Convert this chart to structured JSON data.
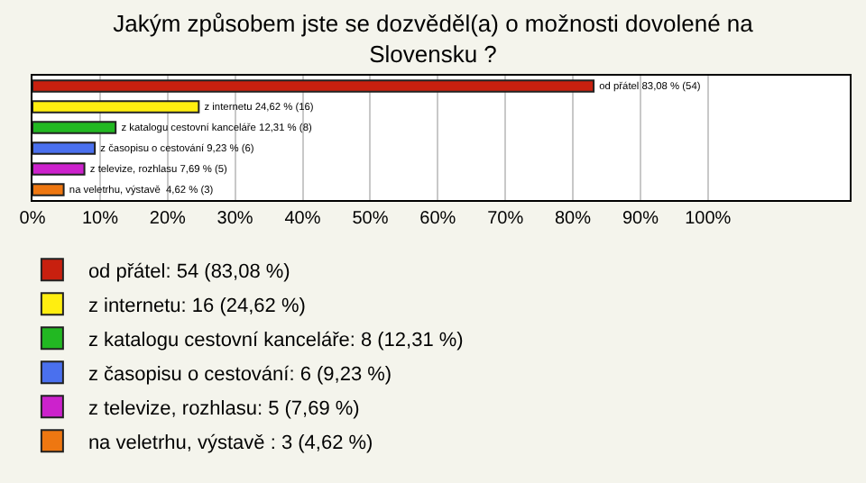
{
  "chart_data": {
    "type": "bar",
    "orientation": "horizontal",
    "title": "Jakým způsobem jste se dozvěděl(a) o možnosti dovolené na Slovensku ?",
    "categories": [
      null,
      null,
      null,
      null,
      null,
      null
    ],
    "series": [
      {
        "name": "od přátel: 54 (83,08 %)",
        "color": "#c8200f",
        "values": [
          83.08,
          null,
          null,
          null,
          null,
          null
        ],
        "value_labels": [
          "od přátel 83,08 % (54)",
          null,
          null,
          null,
          null,
          null
        ]
      },
      {
        "name": "z internetu: 16 (24,62 %)",
        "color": "#ffee10",
        "values": [
          null,
          24.62,
          null,
          null,
          null,
          null
        ],
        "value_labels": [
          null,
          "z internetu 24,62 % (16)",
          null,
          null,
          null,
          null
        ]
      },
      {
        "name": "z katalogu cestovní kanceláře: 8 (12,31 %)",
        "color": "#22b822",
        "values": [
          null,
          null,
          12.31,
          null,
          null,
          null
        ],
        "value_labels": [
          null,
          null,
          "z katalogu cestovní kanceláře 12,31 % (8)",
          null,
          null,
          null
        ]
      },
      {
        "name": "z časopisu o cestování: 6 (9,23 %)",
        "color": "#4a70ee",
        "values": [
          null,
          null,
          null,
          9.23,
          null,
          null
        ],
        "value_labels": [
          null,
          null,
          null,
          "z časopisu o cestování 9,23 % (6)",
          null,
          null
        ]
      },
      {
        "name": "z televize, rozhlasu: 5 (7,69 %)",
        "color": "#cc22cc",
        "values": [
          null,
          null,
          null,
          null,
          7.69,
          null
        ],
        "value_labels": [
          null,
          null,
          null,
          null,
          "z televize, rozhlasu 7,69 % (5)",
          null
        ]
      },
      {
        "name": "na veletrhu, výstavě : 3 (4,62 %)",
        "color": "#ee7711",
        "values": [
          null,
          null,
          null,
          null,
          null,
          4.62
        ],
        "value_labels": [
          null,
          null,
          null,
          null,
          null,
          "na veletrhu, výstavě  4,62 % (3)"
        ]
      }
    ],
    "xlim": [
      0,
      121
    ],
    "xticks": [
      {
        "value": 0,
        "label": "0%"
      },
      {
        "value": 10,
        "label": "10%"
      },
      {
        "value": 20,
        "label": "20%"
      },
      {
        "value": 30,
        "label": "30%"
      },
      {
        "value": 40,
        "label": "40%"
      },
      {
        "value": 50,
        "label": "50%"
      },
      {
        "value": 60,
        "label": "60%"
      },
      {
        "value": 70,
        "label": "70%"
      },
      {
        "value": 80,
        "label": "80%"
      },
      {
        "value": 90,
        "label": "90%"
      },
      {
        "value": 100,
        "label": "100%"
      }
    ],
    "grid": "x",
    "legend": "bottom",
    "tick_labels": "x"
  }
}
